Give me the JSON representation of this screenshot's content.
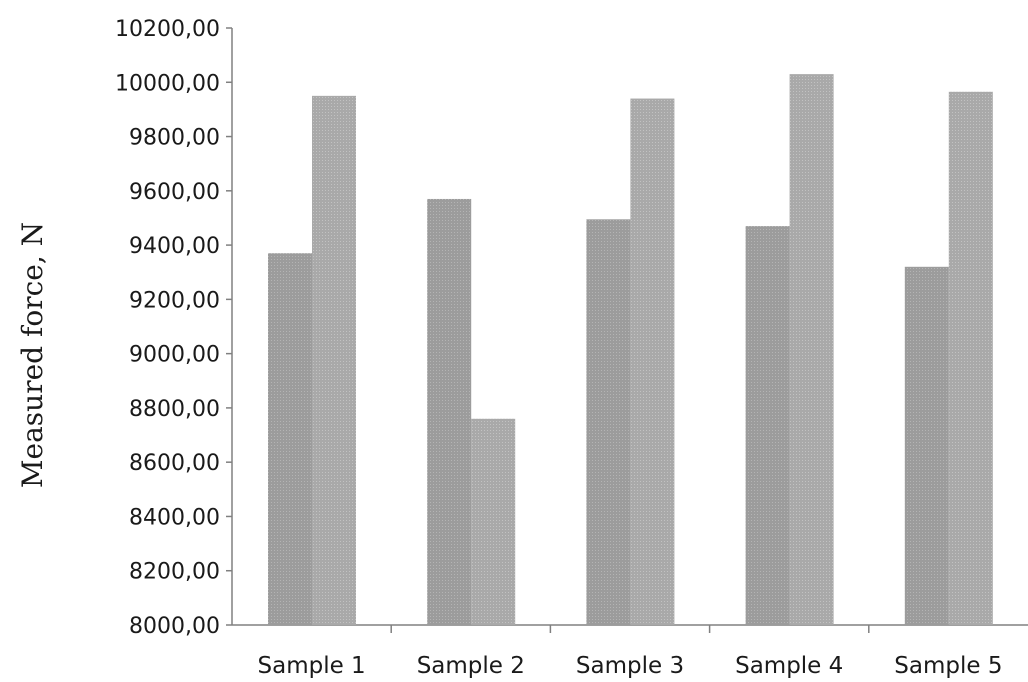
{
  "chart_data": {
    "type": "bar",
    "title": "",
    "xlabel": "",
    "ylabel": "Measured force, N",
    "ylim": [
      8000,
      10200
    ],
    "yticks": [
      "10200,00",
      "10000,00",
      "9800,00",
      "9600,00",
      "9400,00",
      "9200,00",
      "9000,00",
      "8800,00",
      "8600,00",
      "8400,00",
      "8200,00",
      "8000,00"
    ],
    "categories": [
      "Sample 1",
      "Sample 2",
      "Sample 3",
      "Sample 4",
      "Sample 5"
    ],
    "series": [
      {
        "values": [
          9370,
          9570,
          9495,
          9470,
          9320
        ]
      },
      {
        "values": [
          9950,
          8760,
          9940,
          10030,
          9965
        ]
      }
    ],
    "grid": false,
    "legend": "none",
    "colors": {
      "series1": "#9c9c9c",
      "series2": "#a8a8a8",
      "axis": "#808080"
    }
  }
}
